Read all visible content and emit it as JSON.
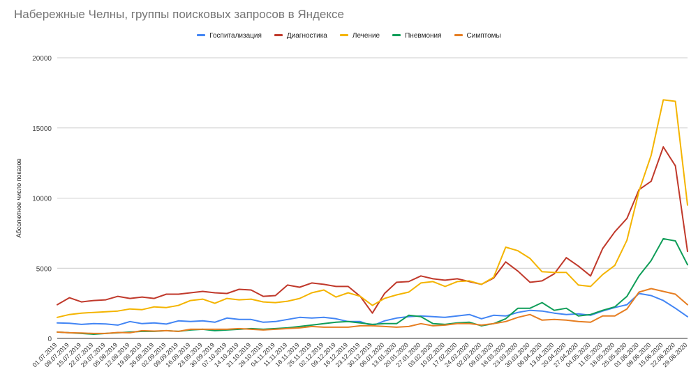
{
  "chart_data": {
    "type": "line",
    "title": "Набережные Челны, группы поисковых запросов в Яндексе",
    "ylabel": "Абсолютное число показов",
    "xlabel": "",
    "ylim": [
      0,
      20000
    ],
    "yticks": [
      "0",
      "5000",
      "10000",
      "15000",
      "20000"
    ],
    "ytick_values": [
      0,
      5000,
      10000,
      15000,
      20000
    ],
    "grid": "horizontal",
    "legend_position": "top",
    "x": [
      "01.07.2019",
      "08.07.2019",
      "15.07.2019",
      "22.07.2019",
      "29.07.2019",
      "05.08.2019",
      "12.08.2019",
      "19.08.2019",
      "26.08.2019",
      "02.09.2019",
      "09.09.2019",
      "16.09.2019",
      "23.09.2019",
      "30.09.2019",
      "07.10.2019",
      "14.10.2019",
      "21.10.2019",
      "28.10.2019",
      "04.11.2019",
      "11.11.2019",
      "18.11.2019",
      "25.11.2019",
      "02.12.2019",
      "09.12.2019",
      "16.12.2019",
      "23.12.2019",
      "30.12.2019",
      "06.01.2020",
      "13.01.2020",
      "20.01.2020",
      "27.01.2020",
      "03.02.2020",
      "10.02.2020",
      "17.02.2020",
      "24.02.2020",
      "02.03.2020",
      "09.03.2020",
      "16.03.2020",
      "23.03.2020",
      "30.03.2020",
      "06.04.2020",
      "13.04.2020",
      "20.04.2020",
      "27.04.2020",
      "04.05.2020",
      "11.05.2020",
      "18.05.2020",
      "25.05.2020",
      "01.06.2020",
      "08.06.2020",
      "15.06.2020",
      "22.06.2020",
      "29.06.2020"
    ],
    "series": [
      {
        "name": "Госпитализация",
        "color": "#4285f4",
        "values": [
          1100,
          1080,
          1000,
          1050,
          1030,
          950,
          1200,
          1050,
          1100,
          1020,
          1250,
          1200,
          1250,
          1150,
          1450,
          1350,
          1350,
          1150,
          1200,
          1350,
          1500,
          1450,
          1500,
          1400,
          1200,
          1200,
          900,
          1250,
          1450,
          1550,
          1600,
          1550,
          1500,
          1600,
          1700,
          1400,
          1650,
          1600,
          1850,
          2000,
          1950,
          1800,
          1700,
          1750,
          1650,
          1950,
          2200,
          2400,
          3200,
          3050,
          2700,
          2150,
          1550
        ]
      },
      {
        "name": "Диагностика",
        "color": "#c0392b",
        "values": [
          2400,
          2900,
          2600,
          2700,
          2750,
          3000,
          2850,
          2950,
          2850,
          3150,
          3150,
          3250,
          3350,
          3250,
          3200,
          3500,
          3450,
          3000,
          3050,
          3800,
          3650,
          3950,
          3850,
          3700,
          3700,
          3000,
          1800,
          3200,
          4000,
          4050,
          4450,
          4250,
          4150,
          4250,
          4050,
          3850,
          4300,
          5450,
          4800,
          4000,
          4100,
          4600,
          5750,
          5150,
          4450,
          6400,
          7600,
          8550,
          10600,
          11200,
          13650,
          12300,
          6200
        ]
      },
      {
        "name": "Лечение",
        "color": "#f4b400",
        "values": [
          1500,
          1700,
          1800,
          1850,
          1900,
          1950,
          2100,
          2050,
          2250,
          2200,
          2350,
          2700,
          2800,
          2500,
          2850,
          2750,
          2800,
          2600,
          2550,
          2650,
          2850,
          3250,
          3450,
          2950,
          3250,
          3000,
          2350,
          2850,
          3100,
          3300,
          3950,
          4050,
          3700,
          4050,
          4100,
          3850,
          4350,
          6500,
          6250,
          5700,
          4750,
          4700,
          4700,
          3800,
          3700,
          4550,
          5200,
          7000,
          10500,
          13050,
          17000,
          16900,
          9500
        ]
      },
      {
        "name": "Пневмония",
        "color": "#0f9d58",
        "values": [
          450,
          400,
          350,
          300,
          350,
          400,
          450,
          500,
          500,
          550,
          500,
          600,
          650,
          550,
          600,
          650,
          700,
          650,
          700,
          750,
          850,
          950,
          1050,
          1150,
          1200,
          1100,
          1000,
          1050,
          1050,
          1650,
          1550,
          1050,
          1000,
          1100,
          1150,
          900,
          1050,
          1400,
          2150,
          2150,
          2550,
          2000,
          2150,
          1600,
          1700,
          2000,
          2250,
          3000,
          4450,
          5550,
          7100,
          6950,
          5250
        ]
      },
      {
        "name": "Симптомы",
        "color": "#e67e22",
        "values": [
          450,
          400,
          380,
          350,
          350,
          420,
          400,
          550,
          520,
          550,
          500,
          650,
          650,
          650,
          650,
          700,
          650,
          600,
          650,
          700,
          750,
          850,
          800,
          800,
          800,
          900,
          900,
          850,
          800,
          850,
          1050,
          900,
          950,
          1050,
          1050,
          950,
          1050,
          1200,
          1500,
          1700,
          1300,
          1350,
          1300,
          1200,
          1150,
          1600,
          1600,
          2100,
          3300,
          3550,
          3350,
          3150,
          2400
        ]
      }
    ]
  }
}
